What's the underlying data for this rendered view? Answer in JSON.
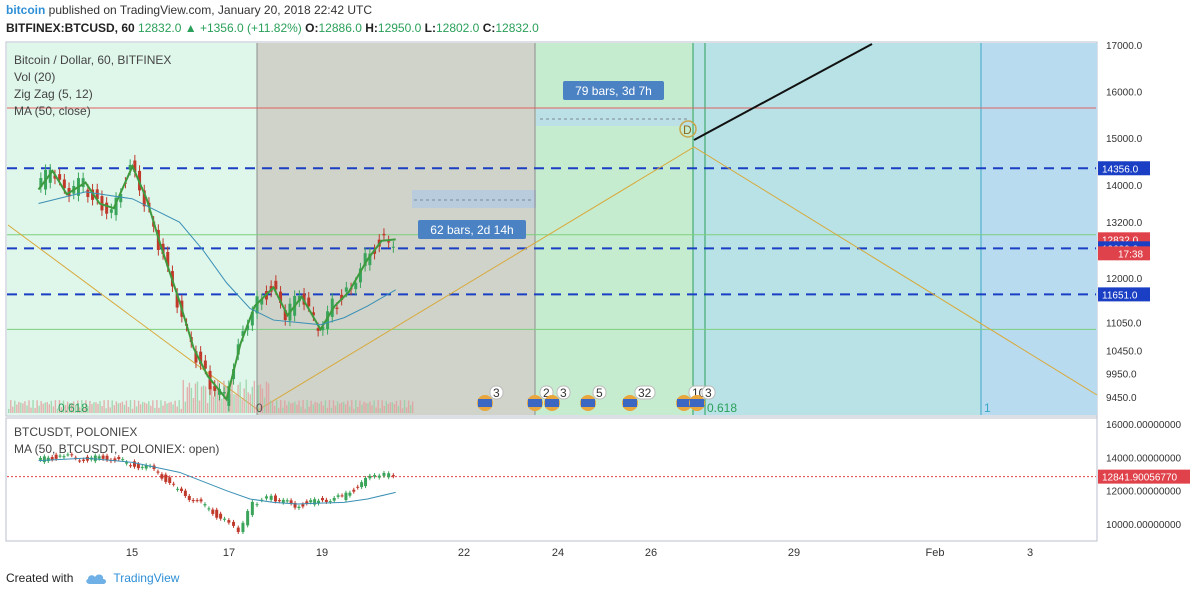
{
  "header": {
    "publisher": "bitcoin",
    "published_text": "published on TradingView.com, January 20, 2018 22:42 UTC",
    "symbol_line": "BITFINEX:BTCUSD, 60",
    "change": "12832.0 ▲ +1356.0 (+11.82%)",
    "o_label": "O:",
    "o_value": "12886.0",
    "h_label": "H:",
    "h_value": "12950.0",
    "l_label": "L:",
    "l_value": "12802.0",
    "c_label": "C:",
    "c_value": "12832.0"
  },
  "main_legend": [
    "Bitcoin / Dollar, 60, BITFINEX",
    "Vol (20)",
    "Zig Zag (5, 12)",
    "MA (50, close)"
  ],
  "sub_legend": [
    "BTCUSDT, POLONIEX",
    "MA (50, BTCUSDT, POLONIEX: open)"
  ],
  "footer": {
    "created_with": "Created with",
    "brand": "TradingView"
  },
  "chart_data": [
    {
      "type": "candlestick",
      "title": "Bitcoin / Dollar, 60, BITFINEX",
      "x_ticks": [
        "15",
        "17",
        "19",
        "22",
        "24",
        "26",
        "29",
        "Feb",
        "3"
      ],
      "y_ticks": [
        17000.0,
        16000.0,
        15000.0,
        14000.0,
        13200.0,
        12000.0,
        11050.0,
        10450.0,
        9950.0,
        9450.0
      ],
      "y_tick_labels": [
        "17000.0",
        "16000.0",
        "15000.0",
        "14000.0",
        "13200.0",
        "12000.0",
        "11050.0",
        "10450.0",
        "9950.0",
        "9450.0"
      ],
      "ylim": [
        9150,
        17200
      ],
      "price_labels": [
        {
          "value": 14356.0,
          "text": "14356.0",
          "color": "#1a3fc4"
        },
        {
          "value": 12832.0,
          "text": "12832.0",
          "color": "#e0424b"
        },
        {
          "value": 12639.0,
          "text": "12639.0",
          "color": "#1a3fc4"
        },
        {
          "value": 11651.0,
          "text": "11651.0",
          "color": "#1a3fc4"
        }
      ],
      "countdown": "17:38",
      "horizontal_levels": [
        {
          "value": 14356.0,
          "style": "dashed",
          "color": "#1a3fc4"
        },
        {
          "value": 12639.0,
          "style": "dashed",
          "color": "#1a3fc4"
        },
        {
          "value": 11651.0,
          "style": "dashed",
          "color": "#1a3fc4"
        },
        {
          "value": 15650,
          "style": "solid",
          "color": "#e06060"
        },
        {
          "value": 12930,
          "style": "solid",
          "color": "#7ccf7c"
        },
        {
          "value": 10900,
          "style": "solid",
          "color": "#7ccf7c"
        }
      ],
      "series": [
        {
          "name": "BTCUSD close",
          "x": [
            13.0,
            13.3,
            13.6,
            14.0,
            14.3,
            14.6,
            15.0,
            15.3,
            15.6,
            16.0,
            16.3,
            16.6,
            17.0,
            17.3,
            17.6,
            18.0,
            18.3,
            18.6,
            19.0,
            19.3,
            19.6,
            20.0,
            20.3,
            20.6
          ],
          "values": [
            13900,
            14300,
            13800,
            14050,
            13600,
            13500,
            14400,
            13700,
            12700,
            11500,
            10500,
            9900,
            9400,
            10600,
            11400,
            11800,
            11200,
            11600,
            10900,
            11400,
            11700,
            12400,
            12800,
            12832
          ]
        },
        {
          "name": "MA (50, close)",
          "x": [
            13.0,
            14.0,
            15.0,
            16.0,
            16.5,
            17.0,
            17.5,
            18.0,
            18.5,
            19.0,
            19.5,
            20.0,
            20.6
          ],
          "values": [
            13600,
            13850,
            13700,
            13200,
            12600,
            11900,
            11350,
            11100,
            11050,
            11000,
            11150,
            11400,
            11750
          ]
        }
      ],
      "annotations": [
        {
          "text": "79 bars, 3d 7h"
        },
        {
          "text": "62 bars, 2d 14h"
        },
        {
          "text": "0.618"
        },
        {
          "text": "0.618"
        },
        {
          "text": "0"
        },
        {
          "text": "1"
        },
        {
          "text": "D"
        }
      ],
      "event_badges": [
        "3",
        "2",
        "3",
        "5",
        "32",
        "10",
        "3"
      ]
    },
    {
      "type": "candlestick",
      "title": "BTCUSDT, POLONIEX",
      "y_tick_labels": [
        "16000.00000000",
        "14000.00000000",
        "12000.00000000",
        "10000.00000000"
      ],
      "y_ticks": [
        16000,
        14000,
        12000,
        10000
      ],
      "ylim": [
        9000,
        16600
      ],
      "price_label": {
        "value": 12841.9005677,
        "text": "12841.90056770",
        "color": "#e0424b"
      },
      "series": [
        {
          "name": "BTCUSDT close",
          "x": [
            13.0,
            13.5,
            14.0,
            14.5,
            15.0,
            15.5,
            16.0,
            16.5,
            17.0,
            17.3,
            17.6,
            18.0,
            18.5,
            19.0,
            19.5,
            20.0,
            20.3,
            20.6
          ],
          "values": [
            13800,
            14100,
            13900,
            14000,
            13600,
            13300,
            12000,
            11200,
            10200,
            9500,
            11200,
            11600,
            11100,
            11400,
            11600,
            12600,
            13000,
            12842
          ]
        },
        {
          "name": "MA (50, BTCUSDT, POLONIEX: open)",
          "x": [
            13.0,
            14.0,
            15.0,
            16.0,
            17.0,
            17.5,
            18.0,
            18.5,
            19.0,
            19.5,
            20.0,
            20.6
          ],
          "values": [
            13800,
            13950,
            13700,
            13100,
            12000,
            11500,
            11300,
            11200,
            11250,
            11300,
            11500,
            11900
          ]
        }
      ]
    }
  ]
}
